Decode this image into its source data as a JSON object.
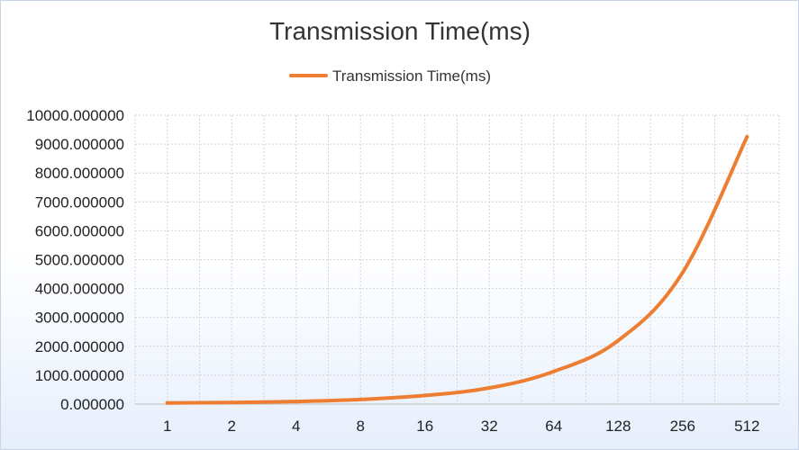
{
  "chart_data": {
    "type": "line",
    "title": "Transmission Time(ms)",
    "xlabel": "",
    "ylabel": "",
    "categories": [
      "1",
      "2",
      "4",
      "8",
      "16",
      "32",
      "64",
      "128",
      "256",
      "512"
    ],
    "series": [
      {
        "name": "Transmission Time(ms)",
        "color": "#ed7d31",
        "values": [
          40,
          55,
          90,
          160,
          300,
          560,
          1130,
          2200,
          4550,
          9250
        ]
      }
    ],
    "ylim": [
      0,
      10000
    ],
    "yticks": [
      "0.000000",
      "1000.000000",
      "2000.000000",
      "3000.000000",
      "4000.000000",
      "5000.000000",
      "6000.000000",
      "7000.000000",
      "8000.000000",
      "9000.000000",
      "10000.000000"
    ],
    "grid": true,
    "legend": "top-center"
  }
}
